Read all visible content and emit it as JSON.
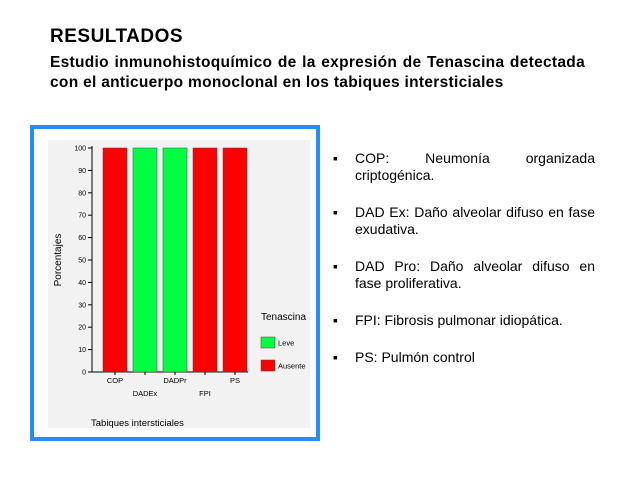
{
  "heading": "RESULTADOS",
  "subheading": "Estudio inmunohistoquímico de la expresión de Tenascina detectada con el anticuerpo monoclonal en los tabiques intersticiales",
  "colors": {
    "frame": "#1E90FF",
    "leve": "#00FF40",
    "ausente": "#FF0000"
  },
  "chart_data": {
    "type": "bar",
    "categories": [
      "COP",
      "DADEx",
      "DADPr",
      "FPI",
      "PS"
    ],
    "series": [
      {
        "name": "Leve",
        "values": [
          0,
          100,
          100,
          0,
          0
        ]
      },
      {
        "name": "Ausente",
        "values": [
          100,
          0,
          0,
          100,
          100
        ]
      }
    ],
    "xlabel": "Tabiques intersticiales",
    "ylabel": "Porcentajes",
    "ylim": [
      0,
      100
    ],
    "yticks": [
      0,
      10,
      20,
      30,
      40,
      50,
      60,
      70,
      80,
      90,
      100
    ],
    "legend_title": "Tenascina",
    "legend_position": "right",
    "grid": false
  },
  "bullets": [
    {
      "marker": "▪",
      "text": "COP: Neumonía organizada criptogénica."
    },
    {
      "marker": "▪",
      "text": "DAD Ex: Daño alveolar difuso en fase exudativa."
    },
    {
      "marker": "▪",
      "text": "DAD Pro: Daño alveolar difuso en fase proliferativa."
    },
    {
      "marker": "▪",
      "text": "FPI: Fibrosis pulmonar idiopática."
    },
    {
      "marker": "▪",
      "text": "PS: Pulmón control"
    }
  ]
}
